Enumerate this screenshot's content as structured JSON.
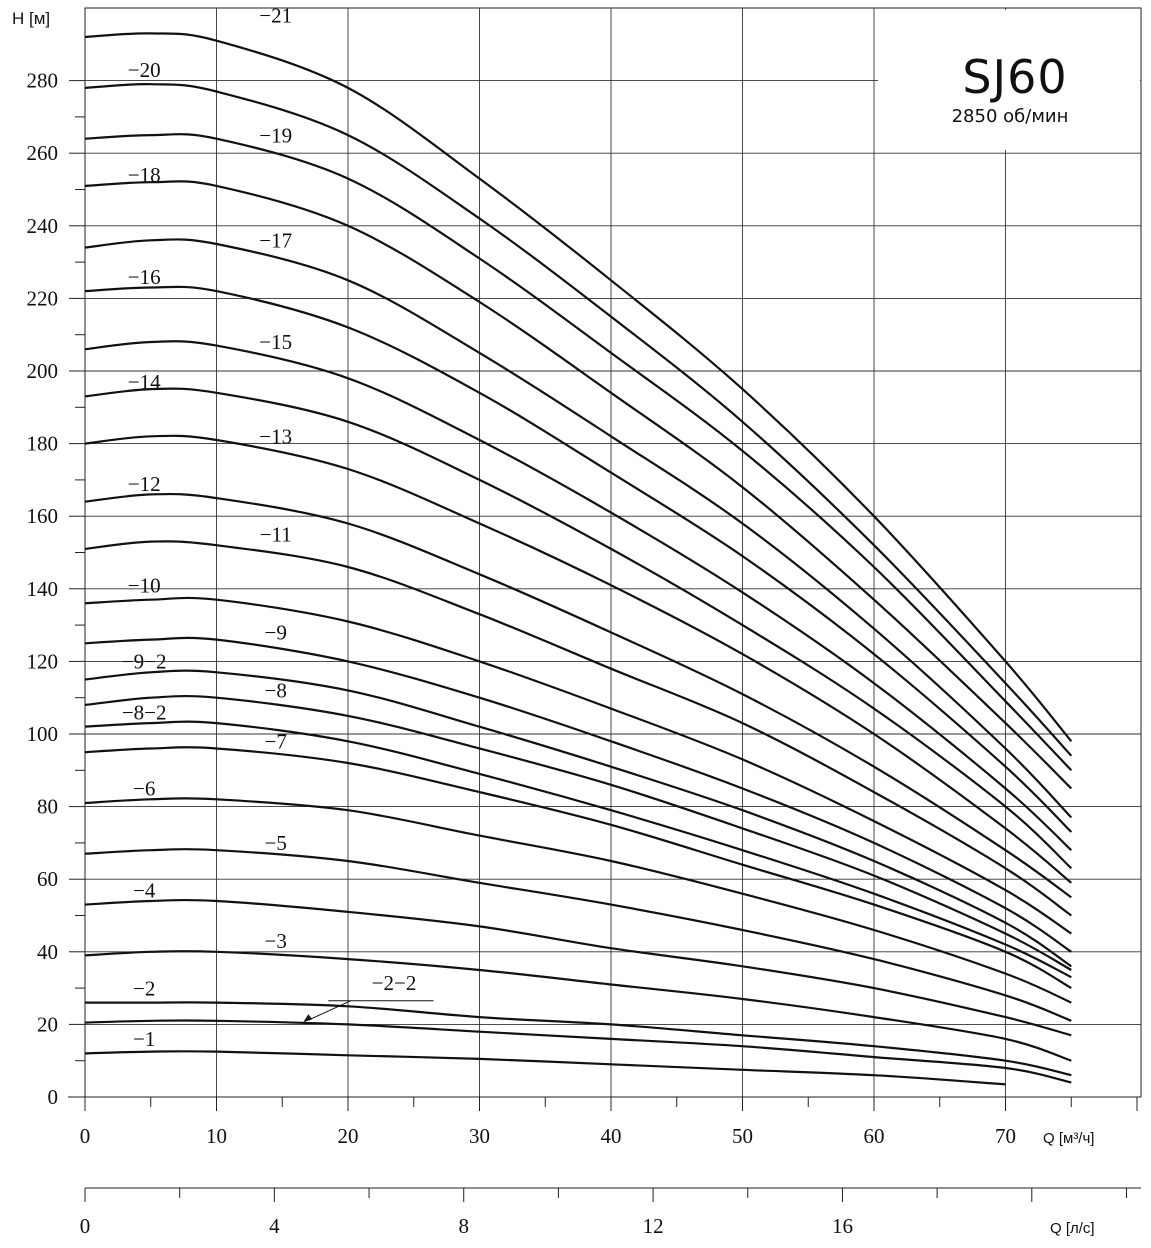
{
  "chart_data": {
    "type": "line",
    "title": "SJ60",
    "subtitle": "2850 об/мин",
    "ylabel": "H [м]",
    "xlabel": "Q [м³/ч]",
    "x2label": "Q [л/с]",
    "xlim": [
      0,
      80
    ],
    "ylim": [
      0,
      290
    ],
    "x_ticks": [
      0,
      10,
      20,
      30,
      40,
      50,
      60,
      70
    ],
    "y_ticks": [
      0,
      20,
      40,
      60,
      80,
      100,
      120,
      140,
      160,
      180,
      200,
      220,
      240,
      260,
      280
    ],
    "x2_ticks": [
      0,
      4,
      8,
      12,
      16
    ],
    "grid": true,
    "series": [
      {
        "name": "−21",
        "x": [
          0,
          5,
          10,
          20,
          30,
          40,
          50,
          60,
          70,
          75
        ],
        "y": [
          292,
          293,
          291,
          278,
          253,
          225,
          195,
          160,
          120,
          98
        ]
      },
      {
        "name": "−20",
        "x": [
          0,
          5,
          10,
          20,
          30,
          40,
          50,
          60,
          70,
          75
        ],
        "y": [
          278,
          279,
          277,
          265,
          242,
          215,
          186,
          152,
          114,
          94
        ]
      },
      {
        "name": "−19",
        "x": [
          0,
          5,
          10,
          20,
          30,
          40,
          50,
          60,
          70,
          75
        ],
        "y": [
          264,
          265,
          264,
          253,
          231,
          205,
          178,
          146,
          109,
          90
        ]
      },
      {
        "name": "−18",
        "x": [
          0,
          5,
          10,
          20,
          30,
          40,
          50,
          60,
          70,
          75
        ],
        "y": [
          251,
          252,
          251,
          240,
          219,
          194,
          168,
          137,
          103,
          85
        ]
      },
      {
        "name": "−17",
        "x": [
          0,
          5,
          10,
          20,
          30,
          40,
          50,
          60,
          70,
          75
        ],
        "y": [
          234,
          236,
          235,
          225,
          205,
          182,
          158,
          129,
          96,
          77
        ]
      },
      {
        "name": "−16",
        "x": [
          0,
          5,
          10,
          20,
          30,
          40,
          50,
          60,
          70,
          75
        ],
        "y": [
          222,
          223,
          222,
          212,
          194,
          172,
          149,
          122,
          91,
          73
        ]
      },
      {
        "name": "−15",
        "x": [
          0,
          5,
          10,
          20,
          30,
          40,
          50,
          60,
          70,
          75
        ],
        "y": [
          206,
          208,
          207,
          198,
          181,
          161,
          139,
          114,
          85,
          68
        ]
      },
      {
        "name": "−14",
        "x": [
          0,
          5,
          10,
          20,
          30,
          40,
          50,
          60,
          70,
          75
        ],
        "y": [
          193,
          195,
          194,
          186,
          170,
          151,
          130,
          107,
          80,
          63
        ]
      },
      {
        "name": "−13",
        "x": [
          0,
          5,
          10,
          20,
          30,
          40,
          50,
          60,
          70,
          75
        ],
        "y": [
          180,
          182,
          181,
          173,
          158,
          141,
          122,
          100,
          74,
          59
        ]
      },
      {
        "name": "−12",
        "x": [
          0,
          5,
          10,
          20,
          30,
          40,
          50,
          60,
          70,
          75
        ],
        "y": [
          164,
          166,
          165,
          158,
          144,
          128,
          111,
          91,
          68,
          55
        ]
      },
      {
        "name": "−11",
        "x": [
          0,
          5,
          10,
          20,
          30,
          40,
          50,
          60,
          70,
          75
        ],
        "y": [
          151,
          153,
          152,
          146,
          133,
          118,
          103,
          84,
          63,
          50
        ]
      },
      {
        "name": "−10",
        "x": [
          0,
          5,
          10,
          20,
          30,
          40,
          50,
          60,
          70,
          75
        ],
        "y": [
          136,
          137,
          137,
          131,
          120,
          107,
          93,
          76,
          57,
          45
        ]
      },
      {
        "name": "−9",
        "x": [
          0,
          5,
          10,
          20,
          30,
          40,
          50,
          60,
          70,
          75
        ],
        "y": [
          125,
          126,
          126,
          120,
          110,
          98,
          85,
          70,
          52,
          40
        ]
      },
      {
        "name": "−9−2",
        "x": [
          0,
          5,
          10,
          20,
          30,
          40,
          50,
          60,
          70,
          75
        ],
        "y": [
          115,
          117,
          117,
          112,
          102,
          91,
          79,
          65,
          48,
          36
        ]
      },
      {
        "name": "−8",
        "x": [
          0,
          5,
          10,
          20,
          30,
          40,
          50,
          60,
          70,
          75
        ],
        "y": [
          108,
          110,
          110,
          105,
          96,
          86,
          74,
          61,
          45,
          35
        ]
      },
      {
        "name": "−8−2",
        "x": [
          0,
          5,
          10,
          20,
          30,
          40,
          50,
          60,
          70,
          75
        ],
        "y": [
          102,
          103,
          103,
          98,
          89,
          79,
          68,
          56,
          42,
          33
        ]
      },
      {
        "name": "−7",
        "x": [
          0,
          5,
          10,
          20,
          30,
          40,
          50,
          60,
          70,
          75
        ],
        "y": [
          95,
          96,
          96,
          92,
          84,
          75,
          64,
          53,
          40,
          30
        ]
      },
      {
        "name": "−6",
        "x": [
          0,
          5,
          10,
          20,
          30,
          40,
          50,
          60,
          70,
          75
        ],
        "y": [
          81,
          82,
          82,
          79,
          72,
          65,
          56,
          46,
          34,
          26
        ]
      },
      {
        "name": "−5",
        "x": [
          0,
          5,
          10,
          20,
          30,
          40,
          50,
          60,
          70,
          75
        ],
        "y": [
          67,
          68,
          68,
          65,
          59,
          53,
          46,
          38,
          28,
          21
        ]
      },
      {
        "name": "−4",
        "x": [
          0,
          5,
          10,
          20,
          30,
          40,
          50,
          60,
          70,
          75
        ],
        "y": [
          53,
          54,
          54,
          51,
          47,
          41,
          36,
          30,
          22,
          17
        ]
      },
      {
        "name": "−3",
        "x": [
          0,
          5,
          10,
          20,
          30,
          40,
          50,
          60,
          70,
          75
        ],
        "y": [
          39,
          40,
          40,
          38,
          35,
          31,
          27,
          22,
          16,
          10
        ]
      },
      {
        "name": "−2",
        "x": [
          0,
          5,
          10,
          20,
          30,
          40,
          50,
          60,
          70,
          75
        ],
        "y": [
          26,
          26,
          26,
          25,
          22,
          20,
          17,
          14,
          10,
          6
        ]
      },
      {
        "name": "−2−2",
        "x": [
          0,
          5,
          10,
          20,
          30,
          40,
          50,
          60,
          70,
          75
        ],
        "y": [
          20.5,
          21,
          21,
          20,
          18,
          16,
          14,
          11,
          8,
          4
        ]
      },
      {
        "name": "−1",
        "x": [
          0,
          5,
          10,
          20,
          30,
          40,
          50,
          60,
          70
        ],
        "y": [
          12,
          12.5,
          12.5,
          11.5,
          10.5,
          9,
          7.5,
          6,
          3.5
        ]
      }
    ]
  }
}
